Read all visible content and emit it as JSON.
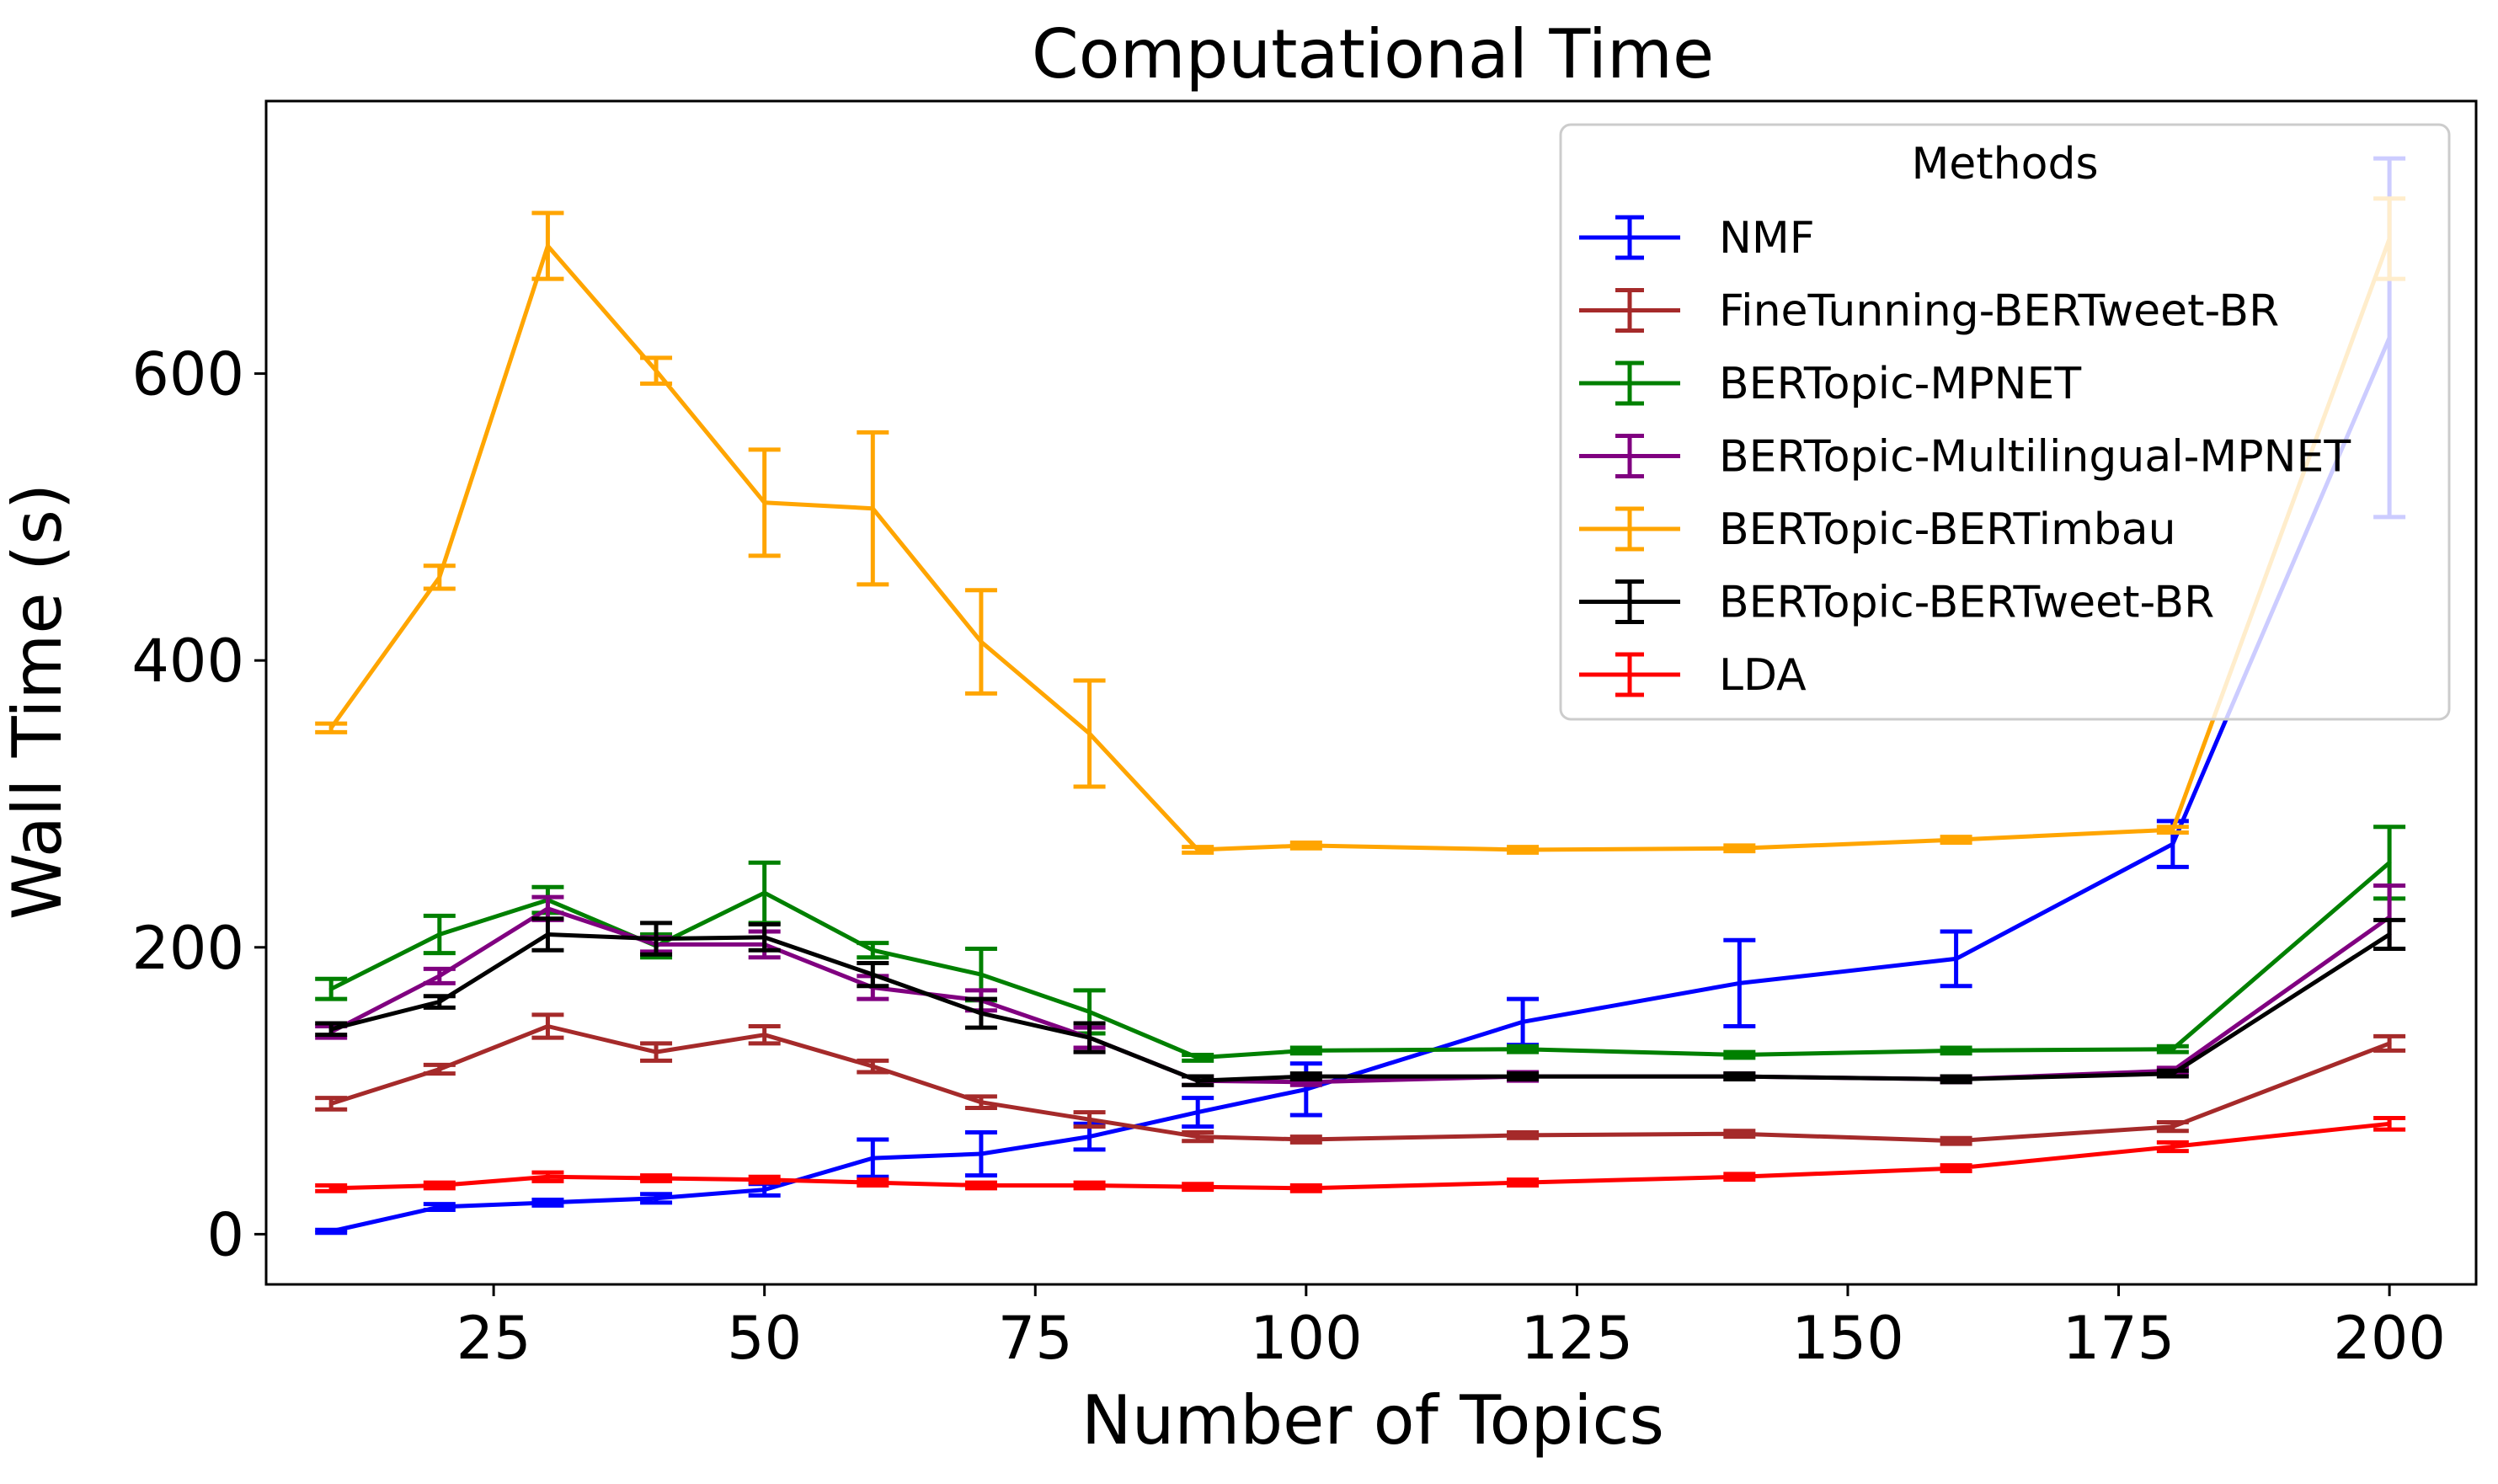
{
  "chart_data": {
    "type": "line",
    "title": "Computational Time",
    "xlabel": "Number of Topics",
    "ylabel": "Wall Time (s)",
    "xlim": [
      4,
      208
    ],
    "ylim": [
      -35,
      790
    ],
    "x_ticks": [
      25,
      50,
      75,
      100,
      125,
      150,
      175,
      200
    ],
    "y_ticks": [
      0,
      200,
      400,
      600
    ],
    "grid": false,
    "legend": {
      "title": "Methods",
      "placement": "top-right"
    },
    "x": [
      10,
      20,
      30,
      40,
      50,
      60,
      70,
      80,
      90,
      100,
      120,
      140,
      160,
      180,
      200
    ],
    "series": [
      {
        "name": "NMF",
        "color": "#0000ff",
        "values": [
          2,
          19,
          22,
          25,
          31,
          53,
          56,
          68,
          85,
          101,
          148,
          175,
          192,
          272,
          625
        ],
        "errors": [
          1,
          2,
          2,
          3,
          4,
          13,
          15,
          9,
          10,
          18,
          16,
          30,
          19,
          16,
          125
        ]
      },
      {
        "name": "FineTunning-BERTweet-BR",
        "color": "#a52a2a",
        "values": [
          91,
          115,
          145,
          127,
          139,
          117,
          92,
          80,
          68,
          66,
          69,
          70,
          65,
          75,
          133
        ],
        "errors": [
          4,
          3,
          8,
          6,
          6,
          4,
          4,
          5,
          3,
          2,
          2,
          2,
          2,
          3,
          5
        ]
      },
      {
        "name": "BERTopic-MPNET",
        "color": "#008000",
        "values": [
          171,
          209,
          233,
          201,
          238,
          198,
          181,
          155,
          123,
          128,
          129,
          125,
          128,
          129,
          259
        ],
        "errors": [
          7,
          13,
          9,
          8,
          21,
          5,
          18,
          15,
          2,
          2,
          2,
          2,
          2,
          2,
          25
        ]
      },
      {
        "name": "BERTopic-Multilingual-MPNET",
        "color": "#800080",
        "values": [
          141,
          180,
          227,
          202,
          202,
          172,
          163,
          137,
          107,
          106,
          110,
          110,
          108,
          114,
          221
        ],
        "errors": [
          4,
          5,
          8,
          5,
          9,
          8,
          7,
          7,
          3,
          2,
          3,
          2,
          2,
          2,
          22
        ]
      },
      {
        "name": "BERTopic-BERTimbau",
        "color": "#ffa500",
        "values": [
          353,
          458,
          689,
          602,
          510,
          506,
          413,
          349,
          268,
          271,
          268,
          269,
          275,
          282,
          694
        ],
        "errors": [
          3,
          8,
          23,
          9,
          37,
          53,
          36,
          37,
          2,
          2,
          2,
          2,
          2,
          2,
          28
        ]
      },
      {
        "name": "BERTopic-BERTweet-BR",
        "color": "#000000",
        "values": [
          143,
          162,
          209,
          206,
          207,
          181,
          154,
          137,
          107,
          110,
          110,
          110,
          108,
          112,
          209
        ],
        "errors": [
          4,
          4,
          11,
          11,
          9,
          8,
          10,
          10,
          3,
          2,
          2,
          2,
          2,
          2,
          10
        ]
      },
      {
        "name": "LDA",
        "color": "#ff0000",
        "values": [
          32,
          34,
          40,
          39,
          38,
          36,
          34,
          34,
          33,
          32,
          36,
          40,
          46,
          61,
          77
        ],
        "errors": [
          2,
          2,
          3,
          2,
          2,
          2,
          2,
          2,
          2,
          2,
          2,
          2,
          2,
          3,
          4
        ]
      }
    ]
  }
}
